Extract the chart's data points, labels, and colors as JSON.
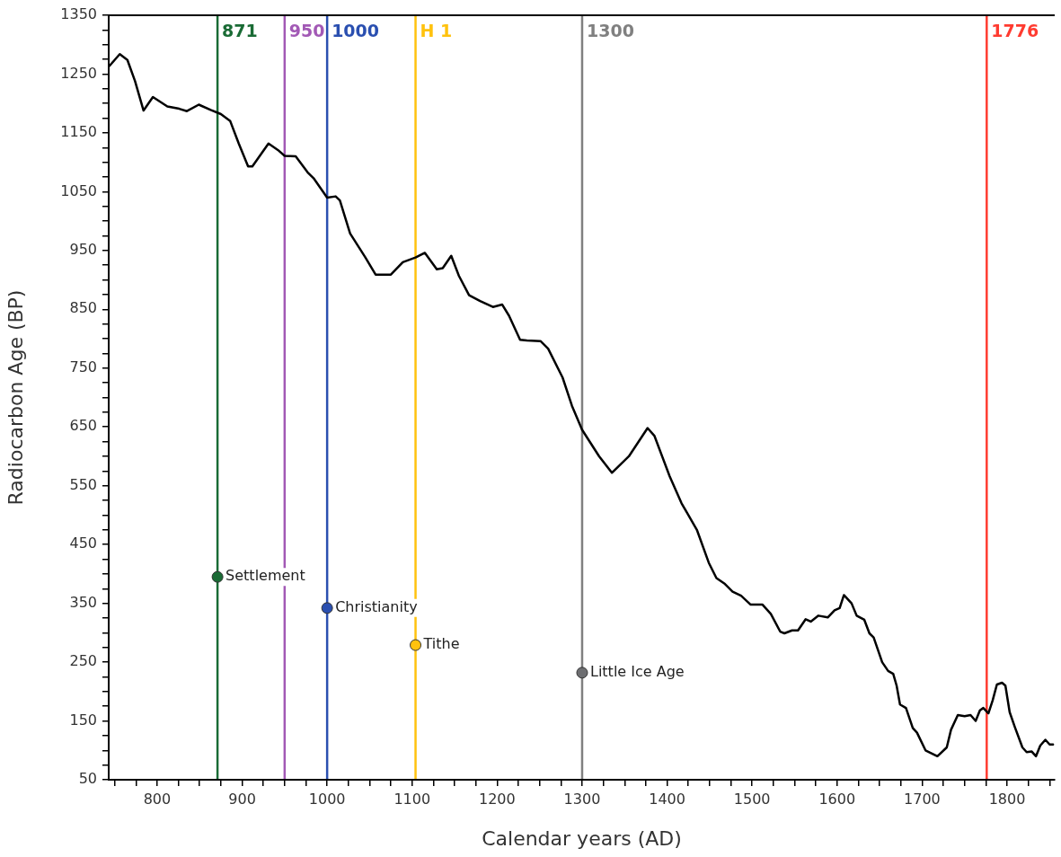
{
  "chart_data": {
    "type": "line",
    "xlabel": "Calendar years (AD)",
    "ylabel": "Radiocarbon Age (BP)",
    "xlim": [
      743,
      1856
    ],
    "ylim": [
      50,
      1350
    ],
    "xticks": [
      {
        "value": 750,
        "label": null
      },
      {
        "value": 775,
        "label": null
      },
      800,
      {
        "value": 825,
        "label": null
      },
      {
        "value": 850,
        "label": null
      },
      {
        "value": 875,
        "label": null
      },
      900,
      {
        "value": 925,
        "label": null
      },
      {
        "value": 950,
        "label": null
      },
      {
        "value": 975,
        "label": null
      },
      1000,
      {
        "value": 1025,
        "label": null
      },
      {
        "value": 1050,
        "label": null
      },
      {
        "value": 1075,
        "label": null
      },
      1100,
      {
        "value": 1125,
        "label": null
      },
      {
        "value": 1150,
        "label": null
      },
      {
        "value": 1175,
        "label": null
      },
      1200,
      {
        "value": 1225,
        "label": null
      },
      {
        "value": 1250,
        "label": null
      },
      {
        "value": 1275,
        "label": null
      },
      1300,
      {
        "value": 1325,
        "label": null
      },
      {
        "value": 1350,
        "label": null
      },
      {
        "value": 1375,
        "label": null
      },
      1400,
      {
        "value": 1425,
        "label": null
      },
      {
        "value": 1450,
        "label": null
      },
      {
        "value": 1475,
        "label": null
      },
      1500,
      {
        "value": 1525,
        "label": null
      },
      {
        "value": 1550,
        "label": null
      },
      {
        "value": 1575,
        "label": null
      },
      1600,
      {
        "value": 1625,
        "label": null
      },
      {
        "value": 1650,
        "label": null
      },
      {
        "value": 1675,
        "label": null
      },
      1700,
      {
        "value": 1725,
        "label": null
      },
      {
        "value": 1750,
        "label": null
      },
      {
        "value": 1775,
        "label": null
      },
      1800,
      {
        "value": 1825,
        "label": null
      },
      {
        "value": 1850,
        "label": null
      }
    ],
    "yticks": [
      50,
      {
        "value": 75,
        "label": null
      },
      {
        "value": 100,
        "label": null
      },
      {
        "value": 125,
        "label": null
      },
      150,
      {
        "value": 175,
        "label": null
      },
      {
        "value": 200,
        "label": null
      },
      {
        "value": 225,
        "label": null
      },
      250,
      {
        "value": 275,
        "label": null
      },
      {
        "value": 300,
        "label": null
      },
      {
        "value": 325,
        "label": null
      },
      350,
      {
        "value": 375,
        "label": null
      },
      {
        "value": 400,
        "label": null
      },
      {
        "value": 425,
        "label": null
      },
      450,
      {
        "value": 475,
        "label": null
      },
      {
        "value": 500,
        "label": null
      },
      {
        "value": 525,
        "label": null
      },
      550,
      {
        "value": 575,
        "label": null
      },
      {
        "value": 600,
        "label": null
      },
      {
        "value": 625,
        "label": null
      },
      650,
      {
        "value": 675,
        "label": null
      },
      {
        "value": 700,
        "label": null
      },
      {
        "value": 725,
        "label": null
      },
      750,
      {
        "value": 775,
        "label": null
      },
      {
        "value": 800,
        "label": null
      },
      {
        "value": 825,
        "label": null
      },
      850,
      {
        "value": 875,
        "label": null
      },
      {
        "value": 900,
        "label": null
      },
      {
        "value": 925,
        "label": null
      },
      950,
      {
        "value": 975,
        "label": null
      },
      {
        "value": 1000,
        "label": null
      },
      {
        "value": 1025,
        "label": null
      },
      1050,
      {
        "value": 1075,
        "label": null
      },
      {
        "value": 1100,
        "label": null
      },
      {
        "value": 1125,
        "label": null
      },
      1150,
      {
        "value": 1175,
        "label": null
      },
      {
        "value": 1200,
        "label": null
      },
      {
        "value": 1225,
        "label": null
      },
      1250,
      {
        "value": 1275,
        "label": null
      },
      {
        "value": 1300,
        "label": null
      },
      {
        "value": 1325,
        "label": null
      },
      1350
    ],
    "grid": false,
    "legend": false,
    "series": [
      {
        "type": "line",
        "color": "#000000",
        "marker": "none",
        "line_style": "solid",
        "x": [
          744,
          756,
          765,
          774,
          784,
          795,
          812,
          826,
          835,
          849,
          863,
          875,
          886,
          896,
          907,
          912,
          931,
          942,
          950,
          963,
          977,
          984,
          1000,
          1010,
          1015,
          1027,
          1045,
          1057,
          1075,
          1089,
          1104,
          1115,
          1129,
          1136,
          1146,
          1155,
          1167,
          1180,
          1195,
          1206,
          1214,
          1227,
          1235,
          1251,
          1260,
          1277,
          1288,
          1300,
          1320,
          1335,
          1355,
          1377,
          1385,
          1403,
          1417,
          1435,
          1449,
          1458,
          1468,
          1477,
          1487,
          1498,
          1512,
          1522,
          1533,
          1538,
          1547,
          1554,
          1563,
          1569,
          1578,
          1589,
          1597,
          1603,
          1608,
          1617,
          1623,
          1632,
          1638,
          1643,
          1653,
          1660,
          1666,
          1670,
          1674,
          1681,
          1689,
          1694,
          1704,
          1718,
          1729,
          1734,
          1742,
          1750,
          1757,
          1763,
          1768,
          1772,
          1778,
          1783,
          1788,
          1794,
          1798,
          1803,
          1809,
          1818,
          1823,
          1829,
          1834,
          1839,
          1845,
          1850,
          1854
        ],
        "values": [
          1264,
          1284,
          1274,
          1238,
          1188,
          1211,
          1195,
          1191,
          1187,
          1198,
          1189,
          1182,
          1170,
          1132,
          1093,
          1093,
          1132,
          1121,
          1111,
          1110,
          1083,
          1073,
          1040,
          1042,
          1035,
          979,
          938,
          909,
          909,
          930,
          938,
          946,
          918,
          920,
          941,
          907,
          874,
          864,
          854,
          858,
          839,
          798,
          797,
          796,
          783,
          734,
          686,
          645,
          600,
          572,
          600,
          648,
          635,
          566,
          520,
          475,
          419,
          393,
          383,
          370,
          363,
          348,
          348,
          332,
          302,
          299,
          304,
          304,
          323,
          319,
          329,
          326,
          338,
          342,
          364,
          350,
          329,
          322,
          299,
          292,
          250,
          235,
          230,
          210,
          178,
          172,
          138,
          130,
          100,
          90,
          105,
          135,
          160,
          158,
          160,
          150,
          168,
          172,
          163,
          185,
          212,
          215,
          210,
          165,
          140,
          105,
          97,
          98,
          90,
          108,
          118,
          110,
          110
        ]
      },
      {
        "type": "scatter",
        "marker": "circle",
        "x": [
          871,
          1000,
          1104,
          1300
        ],
        "values": [
          395,
          342,
          279,
          232
        ],
        "colors": [
          "#1a6b35",
          "#2a4fb0",
          "#ffc20e",
          "#6d6e71"
        ]
      }
    ],
    "ref_lines": [
      {
        "axis": "x",
        "value": 871,
        "label": "871",
        "color": "#1a6b35"
      },
      {
        "axis": "x",
        "value": 950,
        "label": "950",
        "color": "#a259b5"
      },
      {
        "axis": "x",
        "value": 1000,
        "label": "1000",
        "color": "#2a4fb0"
      },
      {
        "axis": "x",
        "value": 1104,
        "label": "H 1",
        "color": "#ffc20e"
      },
      {
        "axis": "x",
        "value": 1300,
        "label": "1300",
        "color": "#808080"
      },
      {
        "axis": "x",
        "value": 1776,
        "label": "1776",
        "color": "#ff3b30"
      }
    ],
    "annotations": [
      {
        "text": "Settlement",
        "x": 871,
        "y": 395
      },
      {
        "text": "Christianity",
        "x": 1000,
        "y": 342
      },
      {
        "text": "Tithe",
        "x": 1104,
        "y": 279
      },
      {
        "text": "Little Ice Age",
        "x": 1300,
        "y": 232
      }
    ]
  }
}
